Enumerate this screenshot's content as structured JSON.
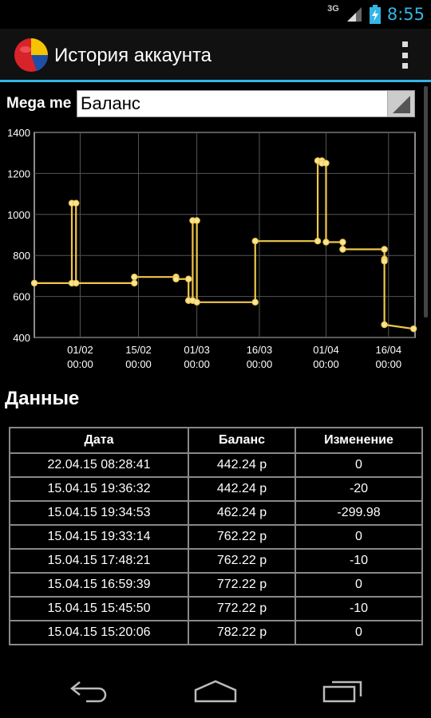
{
  "status_bar": {
    "network": "3G",
    "time": "8:55"
  },
  "action_bar": {
    "title": "История аккаунта",
    "logo_icon": "app-logo-icon",
    "overflow_icon": "overflow-menu-icon"
  },
  "selector": {
    "account_label": "Mega me",
    "value": "Баланс"
  },
  "chart_data": {
    "type": "line",
    "title": "",
    "xlabel": "",
    "ylabel": "",
    "ylim": [
      400,
      1400
    ],
    "y_ticks": [
      "400",
      "600",
      "800",
      "1000",
      "1200",
      "1400"
    ],
    "x_ticks": [
      {
        "label": "01/02",
        "sub": "00:00"
      },
      {
        "label": "15/02",
        "sub": "00:00"
      },
      {
        "label": "01/03",
        "sub": "00:00"
      },
      {
        "label": "16/03",
        "sub": "00:00"
      },
      {
        "label": "01/04",
        "sub": "00:00"
      },
      {
        "label": "16/04",
        "sub": "00:00"
      }
    ],
    "grid": true,
    "series": [
      {
        "color": "#f0c64a",
        "step": true,
        "x": [
          "2015-01-21",
          "2015-01-30",
          "2015-01-30",
          "2015-01-31",
          "2015-01-31",
          "2015-02-14",
          "2015-02-14",
          "2015-02-24",
          "2015-02-24",
          "2015-02-27",
          "2015-02-27",
          "2015-02-28",
          "2015-02-28",
          "2015-03-01",
          "2015-03-01",
          "2015-03-15",
          "2015-03-15",
          "2015-03-30",
          "2015-03-30",
          "2015-03-31",
          "2015-03-31",
          "2015-04-01",
          "2015-04-01",
          "2015-04-05",
          "2015-04-05",
          "2015-04-15",
          "2015-04-15",
          "2015-04-15",
          "2015-04-15",
          "2015-04-22"
        ],
        "y": [
          665,
          665,
          1055,
          1055,
          665,
          665,
          695,
          695,
          685,
          685,
          580,
          580,
          970,
          970,
          572,
          572,
          870,
          870,
          1262,
          1262,
          1250,
          1250,
          865,
          865,
          830,
          830,
          782,
          772,
          462.24,
          442.24
        ]
      }
    ]
  },
  "data_section": {
    "title": "Данные",
    "columns": [
      "Дата",
      "Баланс",
      "Изменение"
    ],
    "rows": [
      [
        "22.04.15 08:28:41",
        "442.24 р",
        "0"
      ],
      [
        "15.04.15 19:36:32",
        "442.24 р",
        "-20"
      ],
      [
        "15.04.15 19:34:53",
        "462.24 р",
        "-299.98"
      ],
      [
        "15.04.15 19:33:14",
        "762.22 р",
        "0"
      ],
      [
        "15.04.15 17:48:21",
        "762.22 р",
        "-10"
      ],
      [
        "15.04.15 16:59:39",
        "772.22 р",
        "0"
      ],
      [
        "15.04.15 15:45:50",
        "772.22 р",
        "-10"
      ],
      [
        "15.04.15 15:20:06",
        "782.22 р",
        "0"
      ]
    ]
  },
  "nav_bar": {
    "back_icon": "back-icon",
    "home_icon": "home-icon",
    "recents_icon": "recent-apps-icon"
  }
}
